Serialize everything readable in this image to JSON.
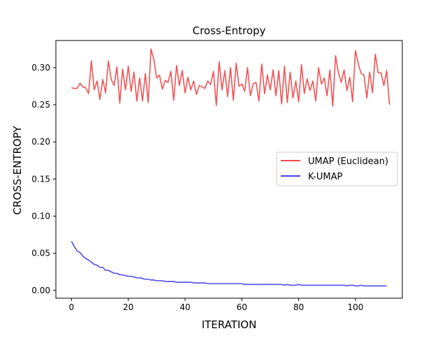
{
  "chart_data": {
    "type": "line",
    "title": "Cross-Entropy",
    "xlabel": "ITERATION",
    "ylabel": "CROSS-ENTROPY",
    "xlim": [
      -5.5,
      116.5
    ],
    "ylim": [
      -0.0105,
      0.3365
    ],
    "xticks": [
      0,
      20,
      40,
      60,
      80,
      100
    ],
    "yticks": [
      0.0,
      0.05,
      0.1,
      0.15,
      0.2,
      0.25,
      0.3
    ],
    "ytick_labels": [
      "0.00",
      "0.05",
      "0.10",
      "0.15",
      "0.20",
      "0.25",
      "0.30"
    ],
    "grid": false,
    "legend": "center-right",
    "series": [
      {
        "name": "UMAP (Euclidean)",
        "color": "#f04a4a",
        "values": [
          0.273,
          0.272,
          0.272,
          0.279,
          0.274,
          0.273,
          0.265,
          0.309,
          0.27,
          0.282,
          0.257,
          0.284,
          0.266,
          0.309,
          0.284,
          0.276,
          0.301,
          0.252,
          0.298,
          0.27,
          0.302,
          0.268,
          0.294,
          0.255,
          0.286,
          0.255,
          0.292,
          0.253,
          0.325,
          0.311,
          0.286,
          0.29,
          0.271,
          0.283,
          0.28,
          0.295,
          0.256,
          0.303,
          0.276,
          0.296,
          0.266,
          0.287,
          0.27,
          0.282,
          0.264,
          0.276,
          0.274,
          0.272,
          0.282,
          0.277,
          0.295,
          0.249,
          0.308,
          0.27,
          0.296,
          0.261,
          0.3,
          0.256,
          0.306,
          0.275,
          0.278,
          0.268,
          0.3,
          0.262,
          0.278,
          0.28,
          0.255,
          0.305,
          0.265,
          0.29,
          0.27,
          0.297,
          0.262,
          0.296,
          0.251,
          0.302,
          0.253,
          0.294,
          0.259,
          0.282,
          0.254,
          0.304,
          0.265,
          0.285,
          0.269,
          0.282,
          0.255,
          0.3,
          0.278,
          0.286,
          0.262,
          0.297,
          0.248,
          0.316,
          0.293,
          0.28,
          0.297,
          0.269,
          0.287,
          0.254,
          0.323,
          0.305,
          0.292,
          0.29,
          0.259,
          0.294,
          0.266,
          0.318,
          0.293,
          0.293,
          0.276,
          0.296,
          0.25
        ],
        "x_start": 0
      },
      {
        "name": "K-UMAP",
        "color": "#4444ee",
        "values": [
          0.066,
          0.059,
          0.053,
          0.051,
          0.046,
          0.043,
          0.041,
          0.038,
          0.035,
          0.034,
          0.031,
          0.031,
          0.027,
          0.027,
          0.025,
          0.023,
          0.023,
          0.021,
          0.021,
          0.02,
          0.019,
          0.019,
          0.018,
          0.017,
          0.017,
          0.016,
          0.015,
          0.015,
          0.014,
          0.014,
          0.013,
          0.013,
          0.013,
          0.012,
          0.012,
          0.012,
          0.012,
          0.011,
          0.011,
          0.011,
          0.011,
          0.011,
          0.011,
          0.01,
          0.01,
          0.01,
          0.01,
          0.01,
          0.009,
          0.009,
          0.009,
          0.009,
          0.009,
          0.009,
          0.009,
          0.009,
          0.009,
          0.009,
          0.009,
          0.009,
          0.009,
          0.008,
          0.008,
          0.008,
          0.008,
          0.008,
          0.008,
          0.008,
          0.008,
          0.008,
          0.008,
          0.008,
          0.008,
          0.008,
          0.008,
          0.007,
          0.008,
          0.007,
          0.007,
          0.007,
          0.008,
          0.007,
          0.007,
          0.007,
          0.007,
          0.007,
          0.007,
          0.007,
          0.007,
          0.007,
          0.007,
          0.007,
          0.007,
          0.007,
          0.007,
          0.007,
          0.007,
          0.006,
          0.007,
          0.007,
          0.006,
          0.006,
          0.007,
          0.006,
          0.006,
          0.006,
          0.006,
          0.006,
          0.006,
          0.006,
          0.006,
          0.006
        ],
        "x_start": 0
      }
    ]
  }
}
